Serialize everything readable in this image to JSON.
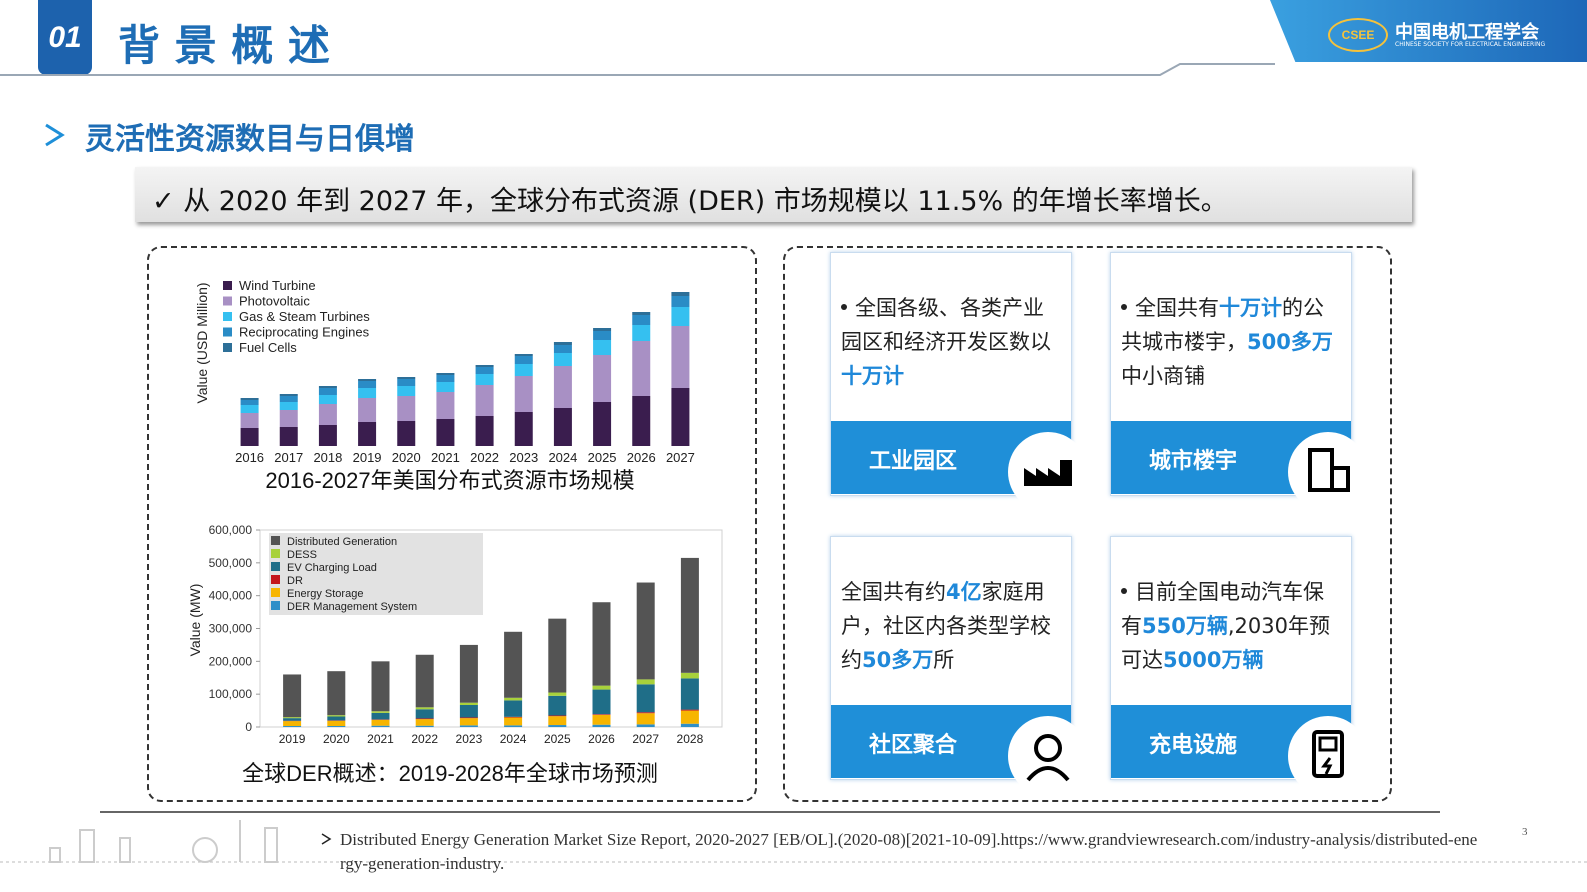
{
  "header": {
    "number": "01",
    "title": "背 景 概 述",
    "logo_cn": "中国电机工程学会",
    "logo_en": "CHINESE SOCIETY FOR ELECTRICAL ENGINEERING",
    "logo_badge": "CSEE"
  },
  "subtitle": "灵活性资源数目与日俱增",
  "highlight": "✓ 从 2020 年到 2027 年，全球分布式资源 (DER) 市场规模以 11.5% 的年增长率增长。",
  "chart_data": [
    {
      "type": "stacked-bar",
      "title": "2016-2027年美国分布式资源市场规模",
      "y_label": "Value (USD Million)",
      "categories": [
        "2016",
        "2017",
        "2018",
        "2019",
        "2020",
        "2021",
        "2022",
        "2023",
        "2024",
        "2025",
        "2026",
        "2027"
      ],
      "series": [
        {
          "name": "Wind Turbine",
          "color": "#3a1d4e",
          "values": [
            18,
            19,
            21,
            24,
            25,
            27,
            30,
            34,
            38,
            44,
            50,
            58
          ]
        },
        {
          "name": "Photovoltaic",
          "color": "#a890c4",
          "values": [
            15,
            17,
            21,
            24,
            25,
            27,
            31,
            36,
            42,
            47,
            55,
            62
          ]
        },
        {
          "name": "Gas & Steam Turbines",
          "color": "#35c0f0",
          "values": [
            8,
            8,
            9,
            10,
            10,
            10,
            11,
            12,
            13,
            15,
            16,
            19
          ]
        },
        {
          "name": "Reciprocating Engines",
          "color": "#2a8cc6",
          "values": [
            5,
            6,
            7,
            7,
            7,
            7,
            7,
            8,
            8,
            9,
            10,
            11
          ]
        },
        {
          "name": "Fuel Cells",
          "color": "#2d6f98",
          "values": [
            2,
            2,
            2,
            2,
            2,
            2,
            2,
            2,
            3,
            3,
            3,
            4
          ]
        }
      ]
    },
    {
      "type": "stacked-bar",
      "title": "全球DER概述：2019-2028年全球市场预测",
      "y_label": "Value (MW)",
      "categories": [
        "2019",
        "2020",
        "2021",
        "2022",
        "2023",
        "2024",
        "2025",
        "2026",
        "2027",
        "2028"
      ],
      "ylim": [
        0,
        600000
      ],
      "yticks": [
        0,
        {
          "value": 100000,
          "label": "100,000"
        },
        {
          "value": 200000,
          "label": "200,000"
        },
        {
          "value": 300000,
          "label": "300,000"
        },
        {
          "value": 400000,
          "label": "400,000"
        },
        {
          "value": 500000,
          "label": "500,000"
        },
        {
          "value": 600000,
          "label": "600,000"
        }
      ],
      "series": [
        {
          "name": "Distributed Generation",
          "color": "#545454",
          "values": [
            130000,
            134000,
            152000,
            160000,
            176000,
            201000,
            225000,
            254000,
            295000,
            350000
          ]
        },
        {
          "name": "DESS",
          "color": "#a8d13b",
          "values": [
            3000,
            4000,
            5000,
            6000,
            7000,
            8000,
            10000,
            12000,
            15000,
            17000
          ]
        },
        {
          "name": "EV Charging Load",
          "color": "#1f6e88",
          "values": [
            8000,
            12000,
            20000,
            28000,
            38000,
            50000,
            60000,
            75000,
            85000,
            95000
          ]
        },
        {
          "name": "DR",
          "color": "#c4161c",
          "values": [
            1000,
            1000,
            1000,
            2000,
            2000,
            2000,
            2000,
            2000,
            3000,
            3000
          ]
        },
        {
          "name": "Energy Storage",
          "color": "#f7b500",
          "values": [
            15000,
            16000,
            18000,
            20000,
            22000,
            24000,
            27000,
            30000,
            34000,
            40000
          ]
        },
        {
          "name": "DER Management System",
          "color": "#2f8fc8",
          "values": [
            3000,
            3000,
            4000,
            4000,
            5000,
            5000,
            6000,
            7000,
            8000,
            10000
          ]
        }
      ]
    }
  ],
  "cards": [
    {
      "bullet": true,
      "label": "工业园区",
      "parts": [
        {
          "text": "全国各级、各类产业园区和经济开发区数以",
          "em": false
        },
        {
          "text": "十万计",
          "em": true
        }
      ]
    },
    {
      "bullet": true,
      "label": "城市楼宇",
      "parts": [
        {
          "text": "全国共有",
          "em": false
        },
        {
          "text": "十万计",
          "em": true
        },
        {
          "text": "的公共城市楼宇，",
          "em": false
        },
        {
          "text": "500多万",
          "em": true
        },
        {
          "text": "中小商铺",
          "em": false
        }
      ]
    },
    {
      "bullet": false,
      "label": "社区聚合",
      "parts": [
        {
          "text": "全国共有约",
          "em": false
        },
        {
          "text": "4亿",
          "em": true
        },
        {
          "text": "家庭用户，社区内各类型学校约",
          "em": false
        },
        {
          "text": "50多万",
          "em": true
        },
        {
          "text": "所",
          "em": false
        }
      ]
    },
    {
      "bullet": true,
      "label": "充电设施",
      "parts": [
        {
          "text": "目前全国电动汽车保有",
          "em": false
        },
        {
          "text": "550万辆",
          "em": true
        },
        {
          "text": ",2030年预可达",
          "em": false
        },
        {
          "text": "5000万辆",
          "em": true
        }
      ]
    }
  ],
  "footnote": "Distributed Energy Generation Market Size Report, 2020-2027 [EB/OL].(2020-08)[2021-10-09].https://www.grandviewresearch.com/industry-analysis/distributed-energy-generation-industry.",
  "page_number": "3"
}
